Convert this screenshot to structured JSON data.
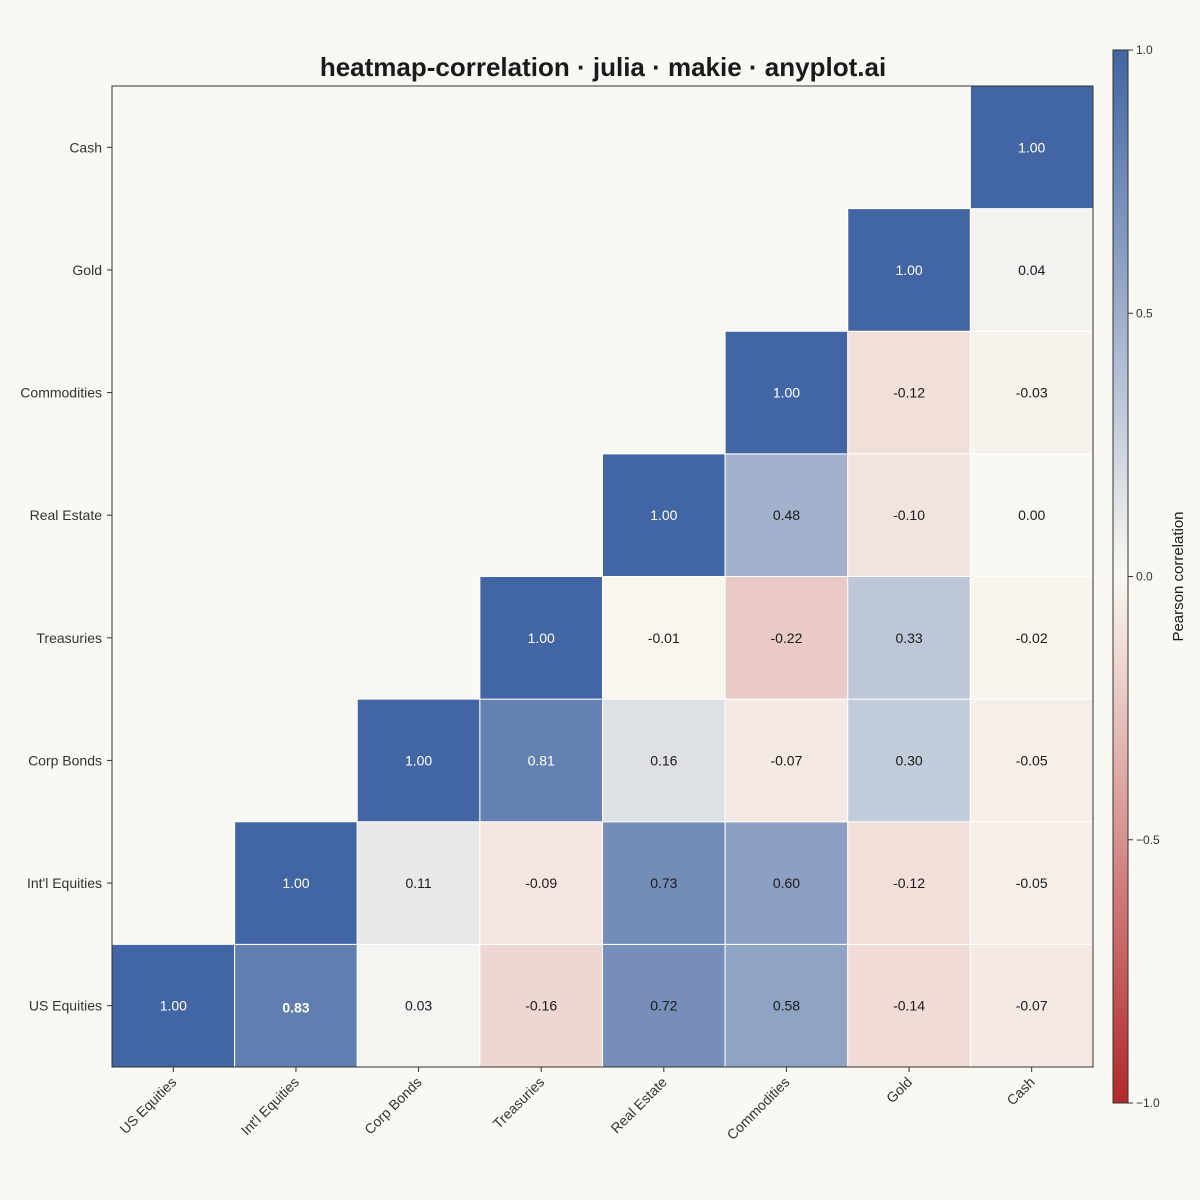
{
  "chart_data": {
    "type": "heatmap",
    "title": "heatmap-correlation · julia · makie · anyplot.ai",
    "x_categories": [
      "US Equities",
      "Int'l Equities",
      "Corp Bonds",
      "Treasuries",
      "Real Estate",
      "Commodities",
      "Gold",
      "Cash"
    ],
    "y_categories": [
      "US Equities",
      "Int'l Equities",
      "Corp Bonds",
      "Treasuries",
      "Real Estate",
      "Commodities",
      "Gold",
      "Cash"
    ],
    "cells": [
      {
        "x": "US Equities",
        "y": "US Equities",
        "value": 1.0,
        "label": "1.00"
      },
      {
        "x": "Int'l Equities",
        "y": "US Equities",
        "value": 0.83,
        "label": "0.83",
        "highlight": true
      },
      {
        "x": "Corp Bonds",
        "y": "US Equities",
        "value": 0.03,
        "label": "0.03"
      },
      {
        "x": "Treasuries",
        "y": "US Equities",
        "value": -0.16,
        "label": "-0.16"
      },
      {
        "x": "Real Estate",
        "y": "US Equities",
        "value": 0.72,
        "label": "0.72"
      },
      {
        "x": "Commodities",
        "y": "US Equities",
        "value": 0.58,
        "label": "0.58"
      },
      {
        "x": "Gold",
        "y": "US Equities",
        "value": -0.14,
        "label": "-0.14"
      },
      {
        "x": "Cash",
        "y": "US Equities",
        "value": -0.07,
        "label": "-0.07"
      },
      {
        "x": "Int'l Equities",
        "y": "Int'l Equities",
        "value": 1.0,
        "label": "1.00"
      },
      {
        "x": "Corp Bonds",
        "y": "Int'l Equities",
        "value": 0.11,
        "label": "0.11"
      },
      {
        "x": "Treasuries",
        "y": "Int'l Equities",
        "value": -0.09,
        "label": "-0.09"
      },
      {
        "x": "Real Estate",
        "y": "Int'l Equities",
        "value": 0.73,
        "label": "0.73"
      },
      {
        "x": "Commodities",
        "y": "Int'l Equities",
        "value": 0.6,
        "label": "0.60"
      },
      {
        "x": "Gold",
        "y": "Int'l Equities",
        "value": -0.12,
        "label": "-0.12"
      },
      {
        "x": "Cash",
        "y": "Int'l Equities",
        "value": -0.05,
        "label": "-0.05"
      },
      {
        "x": "Corp Bonds",
        "y": "Corp Bonds",
        "value": 1.0,
        "label": "1.00"
      },
      {
        "x": "Treasuries",
        "y": "Corp Bonds",
        "value": 0.81,
        "label": "0.81"
      },
      {
        "x": "Real Estate",
        "y": "Corp Bonds",
        "value": 0.16,
        "label": "0.16"
      },
      {
        "x": "Commodities",
        "y": "Corp Bonds",
        "value": -0.07,
        "label": "-0.07"
      },
      {
        "x": "Gold",
        "y": "Corp Bonds",
        "value": 0.3,
        "label": "0.30"
      },
      {
        "x": "Cash",
        "y": "Corp Bonds",
        "value": -0.05,
        "label": "-0.05"
      },
      {
        "x": "Treasuries",
        "y": "Treasuries",
        "value": 1.0,
        "label": "1.00"
      },
      {
        "x": "Real Estate",
        "y": "Treasuries",
        "value": -0.01,
        "label": "-0.01"
      },
      {
        "x": "Commodities",
        "y": "Treasuries",
        "value": -0.22,
        "label": "-0.22"
      },
      {
        "x": "Gold",
        "y": "Treasuries",
        "value": 0.33,
        "label": "0.33"
      },
      {
        "x": "Cash",
        "y": "Treasuries",
        "value": -0.02,
        "label": "-0.02"
      },
      {
        "x": "Real Estate",
        "y": "Real Estate",
        "value": 1.0,
        "label": "1.00"
      },
      {
        "x": "Commodities",
        "y": "Real Estate",
        "value": 0.48,
        "label": "0.48"
      },
      {
        "x": "Gold",
        "y": "Real Estate",
        "value": -0.1,
        "label": "-0.10"
      },
      {
        "x": "Cash",
        "y": "Real Estate",
        "value": 0.0,
        "label": "0.00"
      },
      {
        "x": "Commodities",
        "y": "Commodities",
        "value": 1.0,
        "label": "1.00"
      },
      {
        "x": "Gold",
        "y": "Commodities",
        "value": -0.12,
        "label": "-0.12"
      },
      {
        "x": "Cash",
        "y": "Commodities",
        "value": -0.03,
        "label": "-0.03"
      },
      {
        "x": "Gold",
        "y": "Gold",
        "value": 1.0,
        "label": "1.00"
      },
      {
        "x": "Cash",
        "y": "Gold",
        "value": 0.04,
        "label": "0.04"
      },
      {
        "x": "Cash",
        "y": "Cash",
        "value": 1.0,
        "label": "1.00"
      }
    ],
    "colorbar": {
      "label": "Pearson correlation",
      "range": [
        -1.0,
        1.0
      ],
      "ticks": [
        1.0,
        0.5,
        0.0,
        -0.5,
        -1.0
      ],
      "tick_labels": [
        "1.0",
        "0.5",
        "0.0",
        "−0.5",
        "−1.0"
      ],
      "color_negative": "#B2282A",
      "color_zero": "#FAF8F2",
      "color_positive": "#4265A3"
    },
    "colors": {
      "background": "#FAF8F2",
      "text_dark": "#1a1a1a",
      "text_light": "#FFFFFF"
    }
  }
}
